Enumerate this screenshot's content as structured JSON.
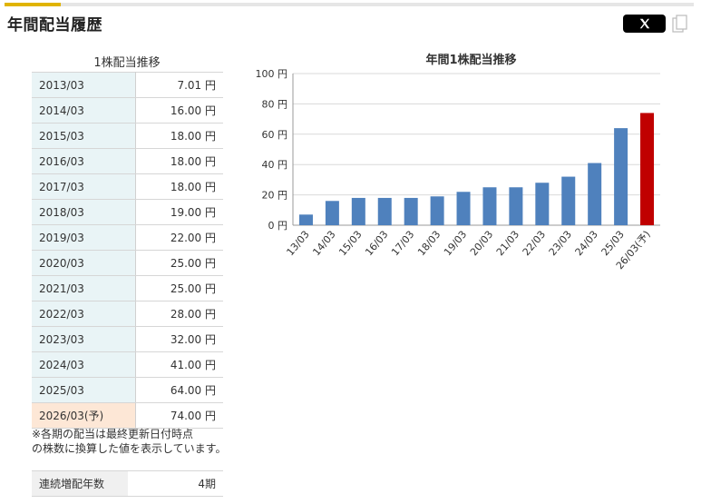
{
  "header": {
    "title": "年間配当履歴",
    "share_x_label": "X",
    "share_x_icon": "x-logo-icon",
    "copy_icon": "copy-icon"
  },
  "table": {
    "title": "1株配当推移",
    "rows": [
      {
        "year": "2013/03",
        "value": "7.01 円"
      },
      {
        "year": "2014/03",
        "value": "16.00 円"
      },
      {
        "year": "2015/03",
        "value": "18.00 円"
      },
      {
        "year": "2016/03",
        "value": "18.00 円"
      },
      {
        "year": "2017/03",
        "value": "18.00 円"
      },
      {
        "year": "2018/03",
        "value": "19.00 円"
      },
      {
        "year": "2019/03",
        "value": "22.00 円"
      },
      {
        "year": "2020/03",
        "value": "25.00 円"
      },
      {
        "year": "2021/03",
        "value": "25.00 円"
      },
      {
        "year": "2022/03",
        "value": "28.00 円"
      },
      {
        "year": "2023/03",
        "value": "32.00 円"
      },
      {
        "year": "2024/03",
        "value": "41.00 円"
      },
      {
        "year": "2025/03",
        "value": "64.00 円"
      },
      {
        "year": "2026/03(予)",
        "value": "74.00 円",
        "forecast": true
      }
    ]
  },
  "note": {
    "line1": "※各期の配当は最終更新日付時点",
    "line2": "の株数に換算した値を表示しています。"
  },
  "streak": {
    "label": "連続増配年数",
    "value": "4期"
  },
  "chart_data": {
    "type": "bar",
    "title": "年間1株配当推移",
    "categories": [
      "13/03",
      "14/03",
      "15/03",
      "16/03",
      "17/03",
      "18/03",
      "19/03",
      "20/03",
      "21/03",
      "22/03",
      "23/03",
      "24/03",
      "25/03",
      "26/03(予)"
    ],
    "values": [
      7.01,
      16,
      18,
      18,
      18,
      19,
      22,
      25,
      25,
      28,
      32,
      41,
      64,
      74
    ],
    "ylim": [
      0,
      100
    ],
    "yticks": [
      0,
      20,
      40,
      60,
      80,
      100
    ],
    "ytick_suffix": " 円",
    "grid": true,
    "colors": {
      "actual": "#4f81bd",
      "forecast": "#c00000"
    },
    "forecast_index": 13
  }
}
